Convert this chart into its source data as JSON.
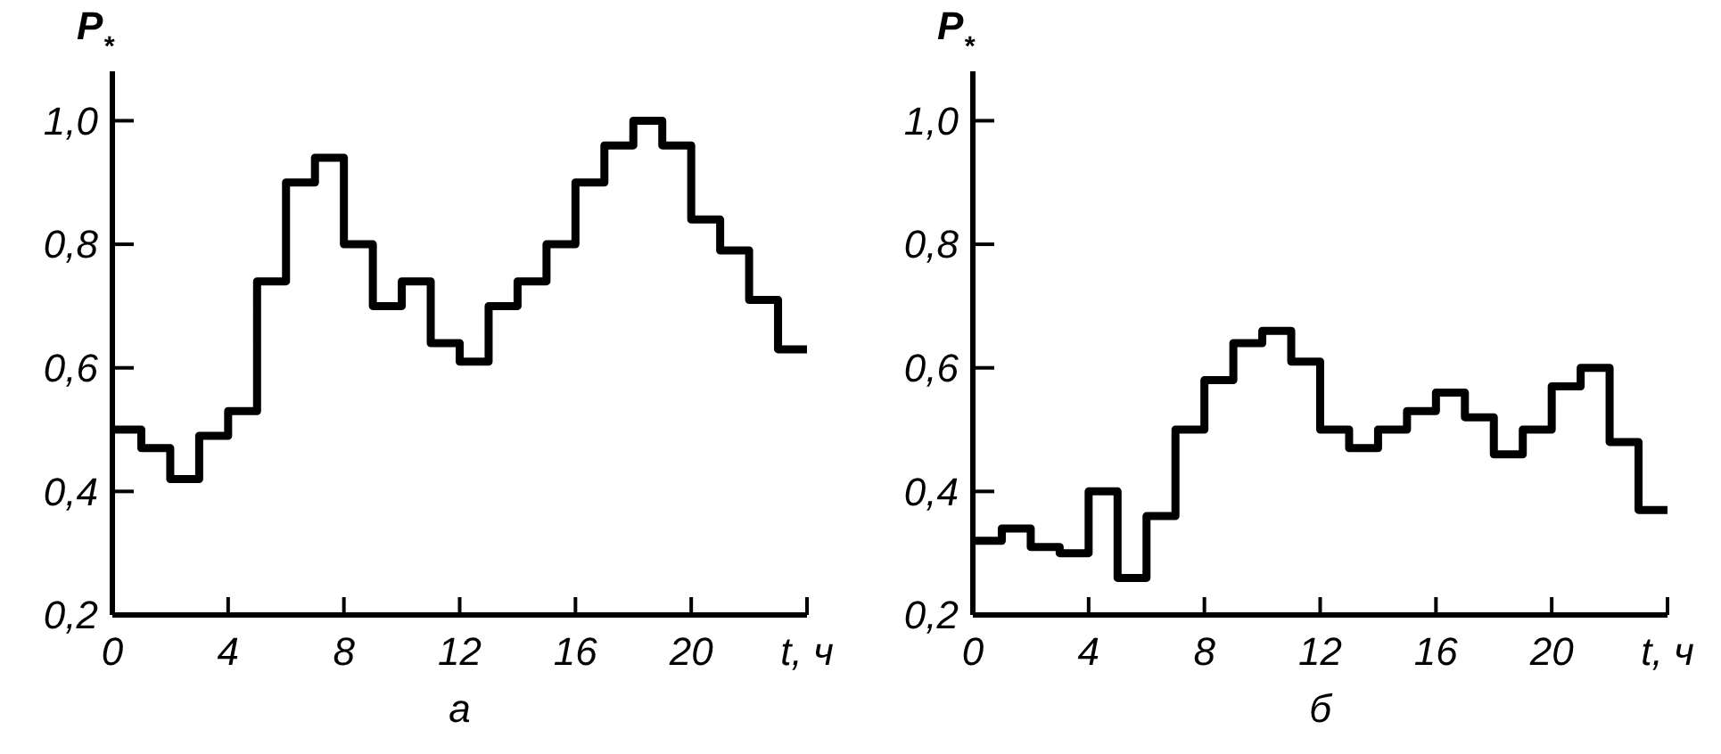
{
  "chart_data": [
    {
      "type": "step",
      "xlabel": "а",
      "ylabel": "P$_{*}$",
      "x": [
        0,
        1,
        2,
        3,
        4,
        5,
        6,
        7,
        8,
        9,
        10,
        11,
        12,
        13,
        14,
        15,
        16,
        17,
        18,
        19,
        20,
        21,
        22,
        23,
        24
      ],
      "series": [
        {
          "color": "#000000",
          "values": [
            0.5,
            0.47,
            0.42,
            0.49,
            0.53,
            0.74,
            0.9,
            0.94,
            0.8,
            0.7,
            0.74,
            0.64,
            0.61,
            0.7,
            0.74,
            0.8,
            0.9,
            0.96,
            1.0,
            0.96,
            0.84,
            0.79,
            0.71,
            0.63,
            0.63
          ]
        }
      ],
      "xlim": [
        0,
        24
      ],
      "xticks": [
        0,
        4,
        8,
        12,
        16,
        20,
        {
          "value": 24,
          "label": "t, ч"
        }
      ],
      "ylim": [
        0.2,
        1.08
      ],
      "yticks": [
        {
          "value": 0.2,
          "label": "0,2"
        },
        {
          "value": 0.4,
          "label": "0,4"
        },
        {
          "value": 0.6,
          "label": "0,6"
        },
        {
          "value": 0.8,
          "label": "0,8"
        },
        {
          "value": 1.0,
          "label": "1,0"
        }
      ],
      "grid": false
    },
    {
      "type": "step",
      "xlabel": "б",
      "ylabel": "P$_{*}$",
      "x": [
        0,
        1,
        2,
        3,
        4,
        5,
        6,
        7,
        8,
        9,
        10,
        11,
        12,
        13,
        14,
        15,
        16,
        17,
        18,
        19,
        20,
        21,
        22,
        23,
        24
      ],
      "series": [
        {
          "color": "#000000",
          "values": [
            0.32,
            0.34,
            0.31,
            0.3,
            0.4,
            0.26,
            0.36,
            0.5,
            0.58,
            0.64,
            0.66,
            0.61,
            0.5,
            0.47,
            0.5,
            0.53,
            0.56,
            0.52,
            0.46,
            0.5,
            0.57,
            0.6,
            0.48,
            0.37,
            0.37
          ]
        }
      ],
      "xlim": [
        0,
        24
      ],
      "xticks": [
        0,
        4,
        8,
        12,
        16,
        20,
        {
          "value": 24,
          "label": "t, ч"
        }
      ],
      "ylim": [
        0.2,
        1.08
      ],
      "yticks": [
        {
          "value": 0.2,
          "label": "0,2"
        },
        {
          "value": 0.4,
          "label": "0,4"
        },
        {
          "value": 0.6,
          "label": "0,6"
        },
        {
          "value": 0.8,
          "label": "0,8"
        },
        {
          "value": 1.0,
          "label": "1,0"
        }
      ],
      "grid": false
    }
  ]
}
